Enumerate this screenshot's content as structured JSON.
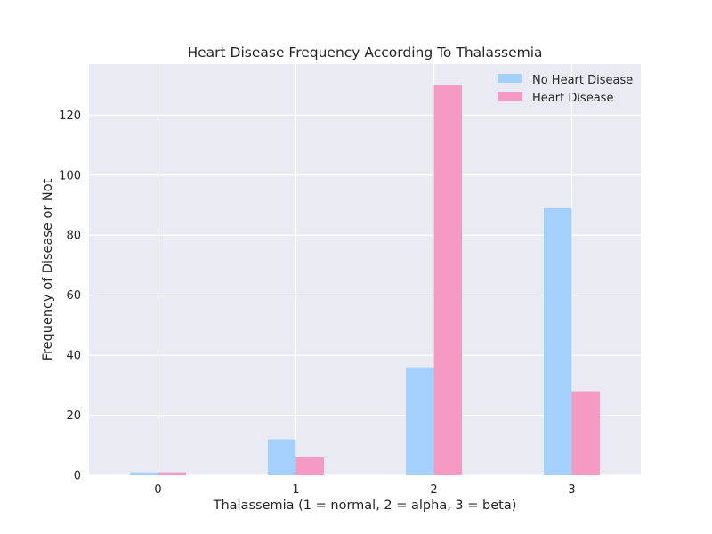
{
  "chart_data": {
    "type": "bar",
    "title": "Heart Disease Frequency According To Thalassemia",
    "xlabel": "Thalassemia (1 = normal, 2 = alpha, 3 = beta)",
    "ylabel": "Frequency of Disease or Not",
    "categories": [
      "0",
      "1",
      "2",
      "3"
    ],
    "series": [
      {
        "name": "No Heart Disease",
        "values": [
          1,
          12,
          36,
          89
        ],
        "color": "#a3d0fc"
      },
      {
        "name": "Heart Disease",
        "values": [
          1,
          6,
          130,
          28
        ],
        "color": "#f49ac3"
      }
    ],
    "ylim": [
      0,
      137
    ],
    "yticks": [
      0,
      20,
      40,
      60,
      80,
      100,
      120
    ],
    "grid": true,
    "legend_position": "top-right",
    "background": "#eaeaf2"
  }
}
